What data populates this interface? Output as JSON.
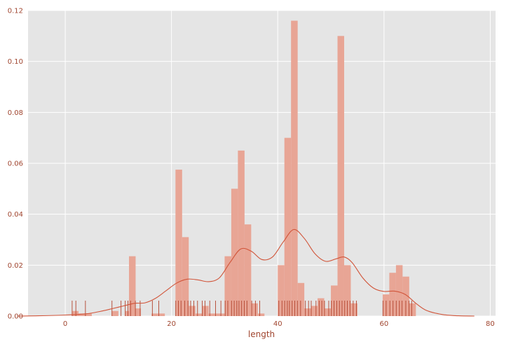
{
  "chart_data": {
    "type": "bar",
    "title": "",
    "xlabel": "length",
    "ylabel": "",
    "xlim": [
      -7,
      81
    ],
    "ylim": [
      0,
      0.12
    ],
    "x_ticks": [
      0,
      20,
      40,
      60,
      80
    ],
    "y_ticks": [
      0.0,
      0.02,
      0.04,
      0.06,
      0.08,
      0.1,
      0.12
    ],
    "x_tick_labels": [
      "0",
      "20",
      "40",
      "60",
      "80"
    ],
    "y_tick_labels": [
      "0.00",
      "0.02",
      "0.04",
      "0.06",
      "0.08",
      "0.10",
      "0.12"
    ],
    "grid": true,
    "colors": {
      "background": "#e5e5e5",
      "grid": "#ffffff",
      "bars": "#e8a595",
      "kde": "#d1553a",
      "rug": "#b2432c",
      "text": "#a0452f"
    },
    "histogram": {
      "bin_width": 1.25,
      "bins": [
        {
          "x": 1.25,
          "height": 0.002
        },
        {
          "x": 2.5,
          "height": 0.001
        },
        {
          "x": 3.75,
          "height": 0.001
        },
        {
          "x": 8.75,
          "height": 0.002
        },
        {
          "x": 11.25,
          "height": 0.002
        },
        {
          "x": 12.0,
          "height": 0.0235
        },
        {
          "x": 13.0,
          "height": 0.003
        },
        {
          "x": 16.25,
          "height": 0.001
        },
        {
          "x": 17.5,
          "height": 0.001
        },
        {
          "x": 20.75,
          "height": 0.0575
        },
        {
          "x": 22.0,
          "height": 0.031
        },
        {
          "x": 23.25,
          "height": 0.004
        },
        {
          "x": 24.5,
          "height": 0.001
        },
        {
          "x": 25.75,
          "height": 0.004
        },
        {
          "x": 27.0,
          "height": 0.001
        },
        {
          "x": 28.25,
          "height": 0.001
        },
        {
          "x": 29.5,
          "height": 0.001
        },
        {
          "x": 30.0,
          "height": 0.0235
        },
        {
          "x": 31.25,
          "height": 0.05
        },
        {
          "x": 32.5,
          "height": 0.065
        },
        {
          "x": 33.75,
          "height": 0.036
        },
        {
          "x": 35.0,
          "height": 0.005
        },
        {
          "x": 36.25,
          "height": 0.001
        },
        {
          "x": 40.0,
          "height": 0.02
        },
        {
          "x": 41.25,
          "height": 0.07
        },
        {
          "x": 42.5,
          "height": 0.116
        },
        {
          "x": 43.75,
          "height": 0.013
        },
        {
          "x": 45.0,
          "height": 0.003
        },
        {
          "x": 46.25,
          "height": 0.004
        },
        {
          "x": 47.5,
          "height": 0.007
        },
        {
          "x": 48.75,
          "height": 0.003
        },
        {
          "x": 50.0,
          "height": 0.012
        },
        {
          "x": 51.25,
          "height": 0.11
        },
        {
          "x": 52.5,
          "height": 0.02
        },
        {
          "x": 53.75,
          "height": 0.005
        },
        {
          "x": 59.75,
          "height": 0.0085
        },
        {
          "x": 61.0,
          "height": 0.017
        },
        {
          "x": 62.25,
          "height": 0.02
        },
        {
          "x": 63.5,
          "height": 0.0155
        },
        {
          "x": 64.75,
          "height": 0.005
        }
      ]
    },
    "kde": {
      "x": [
        -9,
        -5,
        0,
        4,
        7,
        9,
        11,
        13,
        15,
        17,
        19,
        21,
        23,
        25,
        27,
        29,
        31,
        33,
        35,
        37,
        39,
        41,
        43,
        45,
        47,
        49,
        51,
        52.5,
        54,
        56,
        58,
        60,
        62,
        64,
        66,
        68,
        71,
        74,
        77
      ],
      "y": [
        0.0,
        0.0001,
        0.0004,
        0.0009,
        0.002,
        0.003,
        0.004,
        0.005,
        0.0052,
        0.007,
        0.01,
        0.013,
        0.0145,
        0.0142,
        0.0135,
        0.015,
        0.021,
        0.0263,
        0.0255,
        0.0222,
        0.0232,
        0.029,
        0.034,
        0.0305,
        0.0245,
        0.0215,
        0.0225,
        0.0232,
        0.021,
        0.015,
        0.011,
        0.0097,
        0.0098,
        0.0085,
        0.005,
        0.0022,
        0.0006,
        0.0001,
        0.0
      ]
    },
    "rug": [
      1.3,
      2,
      3.8,
      8.8,
      10.5,
      11.3,
      11.8,
      12.3,
      13.2,
      14.1,
      16.4,
      17.6,
      20.8,
      21.3,
      21.8,
      22.5,
      23.1,
      23.6,
      24.2,
      24.9,
      25.8,
      26.3,
      27.2,
      28.3,
      29.3,
      30.1,
      30.6,
      31.3,
      31.8,
      32.3,
      32.7,
      33.2,
      33.7,
      34.2,
      35.1,
      35.8,
      36.6,
      40.2,
      40.8,
      41.3,
      41.8,
      42.2,
      42.7,
      43.2,
      43.7,
      44.3,
      45.2,
      45.8,
      46.3,
      47.2,
      47.8,
      48.3,
      48.8,
      49.6,
      50.1,
      50.6,
      51.1,
      51.6,
      52.1,
      52.6,
      53.1,
      53.6,
      54.2,
      54.8,
      59.8,
      60.4,
      61.1,
      61.7,
      62.3,
      62.9,
      63.4,
      64.1,
      64.7,
      65.2
    ]
  }
}
